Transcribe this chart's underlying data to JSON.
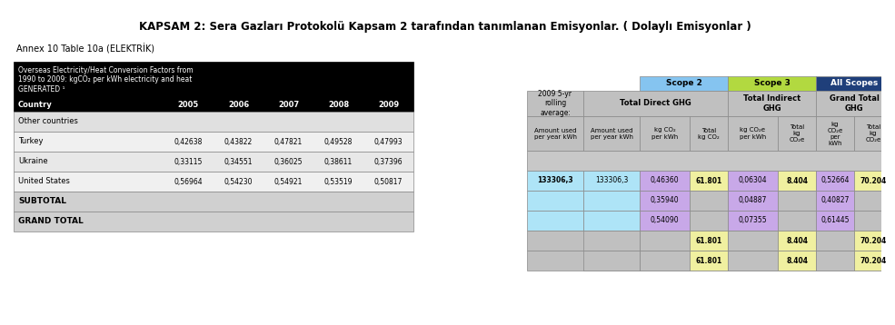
{
  "title": "KAPSAM 2: Sera Gazları Protokolü Kapsam 2 tarafından tanımlanan Emisyonlar. ( Dolaylı Emisyonlar )",
  "subtitle": "Annex 10 Table 10a (ELEKTRİK)",
  "left_header_text": "Overseas Electricity/Heat Conversion Factors from\n1990 to 2009: kgCO₂ per kWh electricity and heat\nGENERATED ¹",
  "country_label": "Country",
  "years": [
    "2005",
    "2006",
    "2007",
    "2008",
    "2009"
  ],
  "other_countries_label": "Other countries",
  "rows": [
    {
      "name": "Turkey",
      "vals": [
        "0,42638",
        "0,43822",
        "0,47821",
        "0,49528",
        "0,47993"
      ]
    },
    {
      "name": "Ukraine",
      "vals": [
        "0,33115",
        "0,34551",
        "0,36025",
        "0,38611",
        "0,37396"
      ]
    },
    {
      "name": "United States",
      "vals": [
        "0,56964",
        "0,54230",
        "0,54921",
        "0,53519",
        "0,50817"
      ]
    }
  ],
  "subtotal_label": "SUBTOTAL",
  "grand_total_label": "GRAND TOTAL",
  "scope2_label": "Scope 2",
  "scope3_label": "Scope 3",
  "all_scopes_label": "All Scopes",
  "rolling_avg_label": "2009 5-yr\nrolling\naverage:",
  "total_direct_ghg": "Total Direct GHG",
  "total_indirect_ghg": "Total Indirect\nGHG",
  "grand_total_ghg": "Grand Total\nGHG",
  "col_headers_row1": [
    "Amount used\nper year kWh",
    "kg CO₂\nper kWh",
    "Total\nkg CO₂",
    "kg CO₂e\nper kWh",
    "Total\nkg\nCO₂e",
    "kg\nCO₂e\nper\nkWh",
    "Total\nkg\nCO₂e"
  ],
  "data_rows": [
    {
      "amount": "133306,3",
      "kg_co2_pkwh": "0,46360",
      "total_kg_co2": "61.801",
      "kg_co2e_pkwh": "0,06304",
      "total_kg_co2e": "8.404",
      "kg_co2e_per_kwh2": "0,52664",
      "total_kg_co2e2": "70.204",
      "amount_color": "#aee4f7",
      "kg_co2_color": "#c8a8e8",
      "total_color": "#f0f0a0",
      "kg_co2e_color": "#c8a8e8",
      "total2_color": "#f0f0a0",
      "per_kwh2_color": "#c8a8e8",
      "total3_color": "#f0f0a0"
    },
    {
      "amount": "",
      "kg_co2_pkwh": "0,35940",
      "total_kg_co2": "",
      "kg_co2e_pkwh": "0,04887",
      "total_kg_co2e": "",
      "kg_co2e_per_kwh2": "0,40827",
      "total_kg_co2e2": "",
      "amount_color": "#aee4f7",
      "kg_co2_color": "#c8a8e8",
      "total_color": "#f0f0a0",
      "kg_co2e_color": "#c8a8e8",
      "total2_color": "#f0f0a0",
      "per_kwh2_color": "#c8a8e8",
      "total3_color": "#f0f0a0"
    },
    {
      "amount": "",
      "kg_co2_pkwh": "0,54090",
      "total_kg_co2": "",
      "kg_co2e_pkwh": "0,07355",
      "total_kg_co2e": "",
      "kg_co2e_per_kwh2": "0,61445",
      "total_kg_co2e2": "",
      "amount_color": "#aee4f7",
      "kg_co2_color": "#c8a8e8",
      "total_color": "#f0f0a0",
      "kg_co2e_color": "#c8a8e8",
      "total2_color": "#f0f0a0",
      "per_kwh2_color": "#c8a8e8",
      "total3_color": "#f0f0a0"
    }
  ],
  "subtotal_data": {
    "total_kg_co2": "61.801",
    "total_kg_co2e": "8.404",
    "total_kg_co2e2": "70.204"
  },
  "grand_total_data": {
    "total_kg_co2": "61.801",
    "total_kg_co2e": "8.404",
    "total_kg_co2e2": "70.204"
  },
  "color_black": "#000000",
  "color_white": "#ffffff",
  "color_scope2": "#85c4f0",
  "color_scope3": "#b2d940",
  "color_all_scopes": "#1f3f7a",
  "color_left_header_bg": "#000000",
  "color_left_header_fg": "#ffffff",
  "color_gray_header": "#a0a0a0",
  "color_light_gray": "#d0d0d0",
  "color_purple": "#c8a8e8",
  "color_yellow": "#f0f0a0",
  "color_light_blue": "#aee4f7",
  "color_dark_gray": "#808080"
}
